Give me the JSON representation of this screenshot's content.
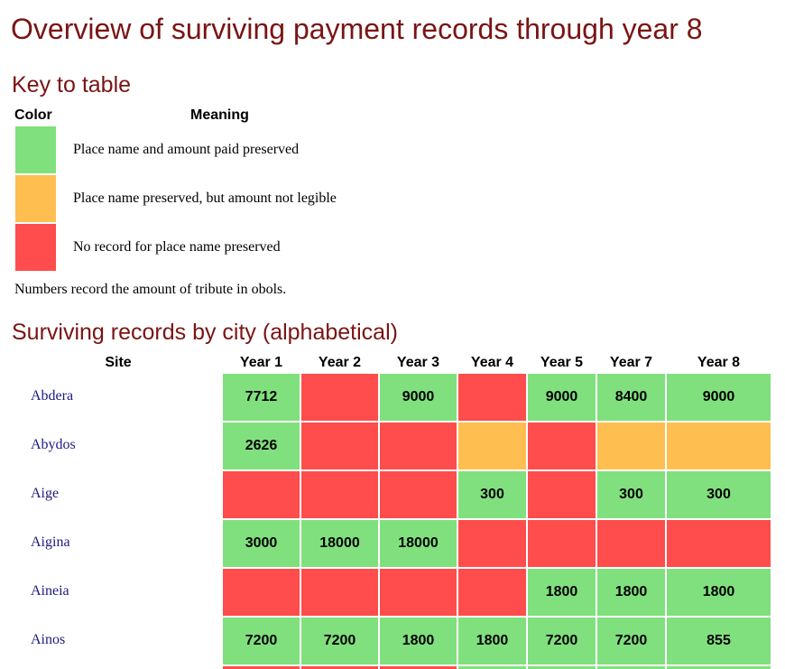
{
  "title": "Overview of surviving payment records through year 8",
  "key": {
    "heading": "Key to table",
    "color_label": "Color",
    "meaning_label": "Meaning",
    "items": [
      {
        "status": "green",
        "color": "#80e07e",
        "text": "Place name and amount paid preserved"
      },
      {
        "status": "orange",
        "color": "#ffbe50",
        "text": "Place name preserved, but amount not legible"
      },
      {
        "status": "red",
        "color": "#ff4c4c",
        "text": "No record for place name preserved"
      }
    ],
    "note": "Numbers record the amount of tribute in obols."
  },
  "records": {
    "heading": "Surviving records by city (alphabetical)",
    "columns": [
      "Site",
      "Year 1",
      "Year 2",
      "Year 3",
      "Year 4",
      "Year 5",
      "Year 7",
      "Year 8"
    ],
    "rows": [
      {
        "site": "Abdera",
        "cells": [
          {
            "status": "green",
            "value": "7712"
          },
          {
            "status": "red",
            "value": ""
          },
          {
            "status": "green",
            "value": "9000"
          },
          {
            "status": "red",
            "value": ""
          },
          {
            "status": "green",
            "value": "9000"
          },
          {
            "status": "green",
            "value": "8400"
          },
          {
            "status": "green",
            "value": "9000"
          }
        ]
      },
      {
        "site": "Abydos",
        "cells": [
          {
            "status": "green",
            "value": "2626"
          },
          {
            "status": "red",
            "value": ""
          },
          {
            "status": "red",
            "value": ""
          },
          {
            "status": "orange",
            "value": ""
          },
          {
            "status": "red",
            "value": ""
          },
          {
            "status": "orange",
            "value": ""
          },
          {
            "status": "orange",
            "value": ""
          }
        ]
      },
      {
        "site": "Aige",
        "cells": [
          {
            "status": "red",
            "value": ""
          },
          {
            "status": "red",
            "value": ""
          },
          {
            "status": "red",
            "value": ""
          },
          {
            "status": "green",
            "value": "300"
          },
          {
            "status": "red",
            "value": ""
          },
          {
            "status": "green",
            "value": "300"
          },
          {
            "status": "green",
            "value": "300"
          }
        ]
      },
      {
        "site": "Aigina",
        "cells": [
          {
            "status": "green",
            "value": "3000"
          },
          {
            "status": "green",
            "value": "18000"
          },
          {
            "status": "green",
            "value": "18000"
          },
          {
            "status": "red",
            "value": ""
          },
          {
            "status": "red",
            "value": ""
          },
          {
            "status": "red",
            "value": ""
          },
          {
            "status": "red",
            "value": ""
          }
        ]
      },
      {
        "site": "Aineia",
        "cells": [
          {
            "status": "red",
            "value": ""
          },
          {
            "status": "red",
            "value": ""
          },
          {
            "status": "red",
            "value": ""
          },
          {
            "status": "red",
            "value": ""
          },
          {
            "status": "green",
            "value": "1800"
          },
          {
            "status": "green",
            "value": "1800"
          },
          {
            "status": "green",
            "value": "1800"
          }
        ]
      },
      {
        "site": "Ainos",
        "cells": [
          {
            "status": "green",
            "value": "7200"
          },
          {
            "status": "green",
            "value": "7200"
          },
          {
            "status": "green",
            "value": "1800"
          },
          {
            "status": "green",
            "value": "1800"
          },
          {
            "status": "green",
            "value": "7200"
          },
          {
            "status": "green",
            "value": "7200"
          },
          {
            "status": "green",
            "value": "855"
          }
        ]
      }
    ],
    "partial_row": {
      "cells": [
        {
          "status": "red"
        },
        {
          "status": "red"
        },
        {
          "status": "red"
        },
        {
          "status": "green"
        },
        {
          "status": "green"
        },
        {
          "status": "green"
        },
        {
          "status": "green"
        }
      ]
    }
  }
}
